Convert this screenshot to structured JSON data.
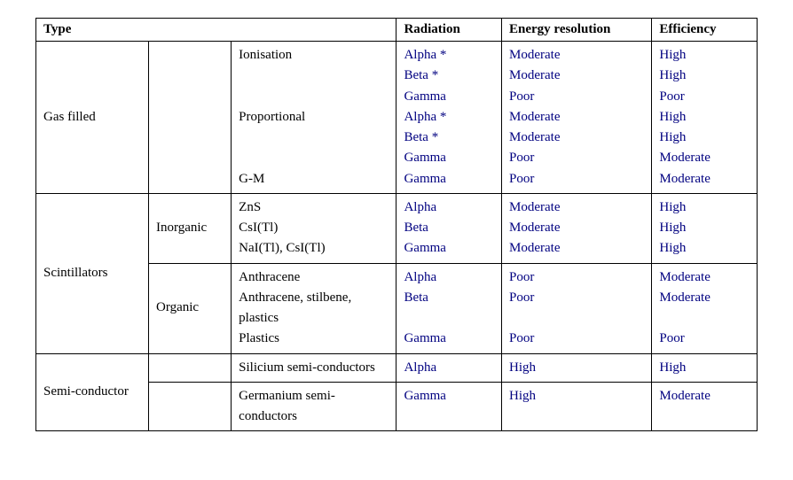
{
  "table": {
    "font_family": "Times New Roman",
    "font_size_pt": 12,
    "text_color": "#000080",
    "header_color": "#000000",
    "border_color": "#000000",
    "background_color": "#ffffff",
    "column_widths_pct": [
      15,
      11,
      22,
      14,
      20,
      14
    ],
    "headers": {
      "type": "Type",
      "radiation": "Radiation",
      "energy_resolution": "Energy resolution",
      "efficiency": "Efficiency"
    },
    "groups": [
      {
        "name": "Gas filled",
        "subgroups": [
          {
            "name": "",
            "detectors": [
              {
                "detector_lines": [
                  "Ionisation",
                  "",
                  ""
                ],
                "radiation": [
                  "Alpha *",
                  "Beta *",
                  "Gamma"
                ],
                "energy_resolution": [
                  "Moderate",
                  "Moderate",
                  "Poor"
                ],
                "efficiency": [
                  "High",
                  "High",
                  "Poor"
                ]
              },
              {
                "detector_lines": [
                  "Proportional",
                  "",
                  ""
                ],
                "radiation": [
                  "Alpha *",
                  "Beta *",
                  "Gamma"
                ],
                "energy_resolution": [
                  "Moderate",
                  "Moderate",
                  "Poor"
                ],
                "efficiency": [
                  "High",
                  "High",
                  "Moderate"
                ]
              },
              {
                "detector_lines": [
                  "G-M"
                ],
                "radiation": [
                  "Gamma"
                ],
                "energy_resolution": [
                  "Poor"
                ],
                "efficiency": [
                  "Moderate"
                ]
              }
            ]
          }
        ]
      },
      {
        "name": "Scintillators",
        "subgroups": [
          {
            "name": "Inorganic",
            "detectors": [
              {
                "detector_lines": [
                  "ZnS",
                  "CsI(Tl)",
                  "NaI(Tl), CsI(Tl)"
                ],
                "radiation": [
                  "Alpha",
                  "Beta",
                  "Gamma"
                ],
                "energy_resolution": [
                  "Moderate",
                  "Moderate",
                  "Moderate"
                ],
                "efficiency": [
                  "High",
                  "High",
                  "High"
                ]
              }
            ]
          },
          {
            "name": "Organic",
            "detectors": [
              {
                "detector_lines": [
                  "Anthracene",
                  "Anthracene, stilbene, plastics",
                  "Plastics"
                ],
                "radiation": [
                  "Alpha",
                  "Beta",
                  "",
                  "Gamma"
                ],
                "energy_resolution": [
                  "Poor",
                  "Poor",
                  "",
                  "Poor"
                ],
                "efficiency": [
                  "Moderate",
                  "Moderate",
                  "",
                  "Poor"
                ]
              }
            ]
          }
        ]
      },
      {
        "name": "Semi-conductor",
        "subgroups": [
          {
            "name": "",
            "detectors": [
              {
                "detector_lines": [
                  "Silicium semi-conductors"
                ],
                "radiation": [
                  "Alpha"
                ],
                "energy_resolution": [
                  "High"
                ],
                "efficiency": [
                  "High"
                ]
              }
            ]
          },
          {
            "name": "",
            "detectors": [
              {
                "detector_lines": [
                  "Germanium semi-conductors"
                ],
                "radiation": [
                  "Gamma"
                ],
                "energy_resolution": [
                  "High"
                ],
                "efficiency": [
                  "Moderate"
                ]
              }
            ]
          }
        ]
      }
    ]
  }
}
